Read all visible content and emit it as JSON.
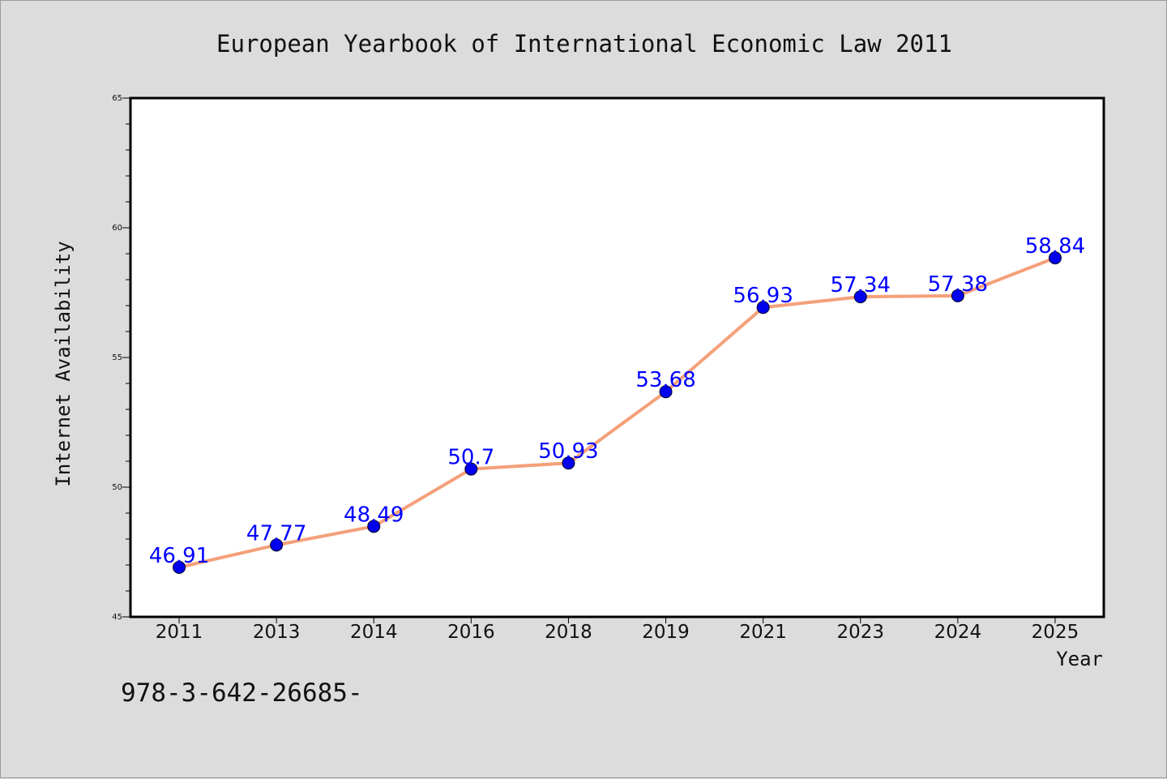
{
  "chart_data": {
    "type": "line",
    "title": "European Yearbook of International Economic Law 2011",
    "xlabel": "Year",
    "ylabel": "Internet Availability",
    "categories": [
      "2011",
      "2013",
      "2014",
      "2016",
      "2018",
      "2019",
      "2021",
      "2023",
      "2024",
      "2025"
    ],
    "series": [
      {
        "values": [
          46.91,
          47.77,
          48.49,
          50.7,
          50.93,
          53.68,
          56.93,
          57.34,
          57.38,
          58.84
        ],
        "labels": [
          "46.91",
          "47.77",
          "48.49",
          "50.7",
          "50.93",
          "53.68",
          "56.93",
          "57.34",
          "57.38",
          "58.84"
        ],
        "line_color": "#f4a07a",
        "marker_color": "#0000ee",
        "label_color": "#0000ff"
      }
    ],
    "ylim": [
      45,
      65
    ],
    "yticks": [
      "45",
      "50",
      "55",
      "60",
      "65"
    ],
    "grid": false,
    "legend": "none"
  },
  "footnote": "978-3-642-26685-",
  "colors": {
    "background": "#dcdcdc",
    "plot_background": "#ffffff",
    "axis": "#000000",
    "text": "#111111"
  }
}
